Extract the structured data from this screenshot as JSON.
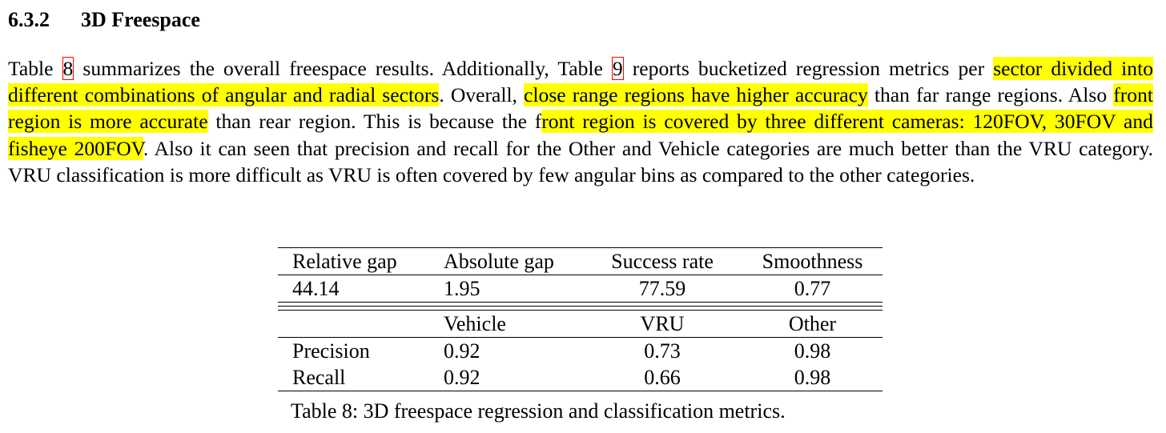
{
  "section": {
    "number": "6.3.2",
    "title": "3D Freespace"
  },
  "paragraph": {
    "t1": "Table ",
    "ref_table8": "8",
    "t2": " summarizes the overall freespace results. Additionally, Table ",
    "ref_table9": "9",
    "t3": " reports bucketized regression metrics per ",
    "h1": "sector divided into different combinations of angular and radial sectors",
    "t4": ". Overall, ",
    "h2": "close range regions have higher accuracy",
    "t5": " than far range regions. Also ",
    "h3": "front region is more accurate",
    "t6": " than rear region. This is because the f",
    "h4": "ront region is covered by three different cameras: 120FOV, 30FOV and fisheye 200FOV",
    "t7": ". Also it can seen that precision and recall for the Other and Vehicle categories are much better than the VRU category. VRU classification is more difficult as VRU is often covered by few angular bins as compared to the other categories."
  },
  "table": {
    "regression_headers": [
      "Relative gap",
      "Absolute gap",
      "Success rate",
      "Smoothness"
    ],
    "regression_values": [
      "44.14",
      "1.95",
      "77.59",
      "0.77"
    ],
    "classification_headers": [
      "",
      "Vehicle",
      "VRU",
      "Other"
    ],
    "classification_rows": [
      [
        "Precision",
        "0.92",
        "0.73",
        "0.98"
      ],
      [
        "Recall",
        "0.92",
        "0.66",
        "0.98"
      ]
    ]
  },
  "caption": "Table 8: 3D freespace regression and classification metrics.",
  "colors": {
    "highlight": "#ffff00",
    "reference_box": "#ff0000"
  }
}
